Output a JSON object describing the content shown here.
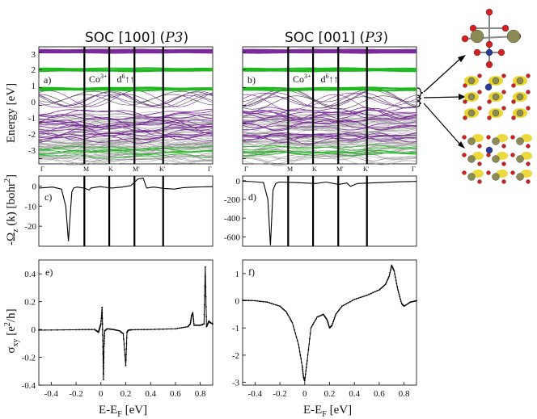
{
  "titles": {
    "left": {
      "text": "SOC [100] (",
      "ital": "P3",
      "close": ")"
    },
    "right": {
      "text": "SOC [001] (",
      "ital": "P3",
      "close": ")"
    }
  },
  "panel_labels": {
    "a": "a)",
    "b": "b)",
    "c": "c)",
    "d": "d)",
    "e": "e)",
    "f": "f)"
  },
  "band_annotation": {
    "ion": "Co",
    "ion_charge": "3+",
    "config": "d",
    "config_sup": "6",
    "spins": "↑↑"
  },
  "axis_labels": {
    "energy": "Energy [eV]",
    "berry_prefix": "-Ω",
    "berry_sub": "z",
    "berry_rest": " (k) [bohr",
    "berry_sup": "2",
    "berry_close": "]",
    "sigma": "σ",
    "sigma_sub": "xy",
    "sigma_rest": " [e",
    "sigma_sup": "2",
    "sigma_close": "/h]",
    "x_ef": "E-E",
    "x_ef_sub": "F",
    "x_ef_rest": " [eV]"
  },
  "hs_points": [
    "Γ",
    "M",
    "K",
    "M'",
    "K'",
    "Γ"
  ],
  "energy_ticks": [
    "3",
    "2",
    "1",
    "0",
    "-1",
    "-2",
    "-3"
  ],
  "chart_data": [
    {
      "type": "line",
      "panel": "c",
      "ylabel": "-Ωz(k) [bohr²]",
      "ylim": [
        -30,
        5
      ],
      "yticks": [
        0,
        -10,
        -20
      ],
      "kpath": [
        "Γ",
        "M",
        "K",
        "M'",
        "K'",
        "Γ"
      ],
      "series": [
        {
          "name": "berry",
          "t": [
            0,
            0.08,
            0.13,
            0.155,
            0.17,
            0.19,
            0.2,
            0.22,
            0.26,
            0.29,
            0.3,
            0.35,
            0.42,
            0.48,
            0.53,
            0.57,
            0.6,
            0.62,
            0.66,
            0.72,
            0.78,
            0.83,
            0.9,
            1.0
          ],
          "values": [
            -1,
            -0.5,
            -1.5,
            -10,
            -27.5,
            -3,
            -1,
            -0.5,
            -1,
            -2,
            -1,
            -0.3,
            -1,
            -0.5,
            0.2,
            3.5,
            4,
            -1,
            -0.5,
            -1.2,
            -1.5,
            -0.8,
            -0.5,
            -0.3
          ]
        }
      ]
    },
    {
      "type": "line",
      "panel": "d",
      "ylabel": "-Ωz(k) [bohr²]",
      "ylim": [
        -700,
        50
      ],
      "yticks": [
        0,
        -200,
        -400,
        -600
      ],
      "kpath": [
        "Γ",
        "M",
        "K",
        "M'",
        "K'",
        "Γ"
      ],
      "series": [
        {
          "name": "berry",
          "t": [
            0,
            0.06,
            0.12,
            0.145,
            0.16,
            0.175,
            0.19,
            0.21,
            0.3,
            0.42,
            0.48,
            0.55,
            0.6,
            0.62,
            0.66,
            0.73,
            0.8,
            0.9,
            1.0
          ],
          "values": [
            -5,
            -10,
            -20,
            -200,
            -690,
            -100,
            -30,
            -15,
            -20,
            -30,
            -15,
            -40,
            -25,
            -60,
            -30,
            -25,
            -20,
            -12,
            -8
          ]
        }
      ]
    },
    {
      "type": "line",
      "panel": "e",
      "xlabel": "E-EF [eV]",
      "ylabel": "σxy [e²/h]",
      "xlim": [
        -0.5,
        0.9
      ],
      "ylim": [
        -0.4,
        0.5
      ],
      "xticks": [
        -0.4,
        -0.2,
        0,
        0.2,
        0.4,
        0.6,
        0.8
      ],
      "yticks": [
        0.4,
        0.2,
        0,
        -0.2,
        -0.4
      ],
      "series": [
        {
          "name": "sigma_xy",
          "x": [
            -0.5,
            -0.2,
            -0.05,
            -0.02,
            -0.01,
            0.0,
            0.01,
            0.015,
            0.02,
            0.025,
            0.03,
            0.05,
            0.1,
            0.15,
            0.18,
            0.2,
            0.21,
            0.22,
            0.25,
            0.4,
            0.6,
            0.7,
            0.72,
            0.73,
            0.74,
            0.75,
            0.8,
            0.83,
            0.84,
            0.85,
            0.86,
            0.87,
            0.88,
            0.9
          ],
          "values": [
            -0.005,
            -0.002,
            0.0,
            -0.02,
            0.01,
            0.04,
            0.16,
            -0.08,
            -0.36,
            -0.12,
            -0.01,
            0.005,
            0.0,
            -0.01,
            -0.03,
            -0.26,
            -0.02,
            -0.005,
            -0.002,
            0.0,
            0.005,
            0.02,
            0.04,
            0.1,
            0.12,
            0.03,
            0.03,
            0.04,
            0.45,
            0.02,
            0.04,
            0.06,
            0.05,
            0.04
          ]
        }
      ]
    },
    {
      "type": "line",
      "panel": "f",
      "xlabel": "E-EF [eV]",
      "ylabel": "σxy [e²/h]",
      "xlim": [
        -0.5,
        0.9
      ],
      "ylim": [
        -3.1,
        1.5
      ],
      "xticks": [
        -0.4,
        -0.2,
        0,
        0.2,
        0.4,
        0.6,
        0.8
      ],
      "yticks": [
        1,
        0,
        -1,
        -2,
        -3
      ],
      "series": [
        {
          "name": "sigma_xy",
          "x": [
            -0.5,
            -0.4,
            -0.3,
            -0.2,
            -0.15,
            -0.1,
            -0.05,
            -0.02,
            -0.01,
            0.0,
            0.02,
            0.05,
            0.1,
            0.15,
            0.18,
            0.2,
            0.22,
            0.25,
            0.3,
            0.4,
            0.5,
            0.6,
            0.65,
            0.68,
            0.7,
            0.72,
            0.75,
            0.78,
            0.8,
            0.85,
            0.9
          ],
          "values": [
            0.02,
            0.0,
            -0.05,
            -0.2,
            -0.4,
            -0.8,
            -1.6,
            -2.4,
            -2.8,
            -2.95,
            -2.2,
            -1.0,
            -0.6,
            -0.5,
            -0.7,
            -1.0,
            -0.9,
            -0.5,
            -0.2,
            0.05,
            0.2,
            0.4,
            0.6,
            0.9,
            1.3,
            1.1,
            0.4,
            -0.1,
            -0.2,
            -0.05,
            0.0
          ]
        }
      ]
    }
  ],
  "colors": {
    "purple": "#7a2a9a",
    "green": "#1fb81f",
    "grey": "#8a8a8a",
    "black": "#000000"
  }
}
